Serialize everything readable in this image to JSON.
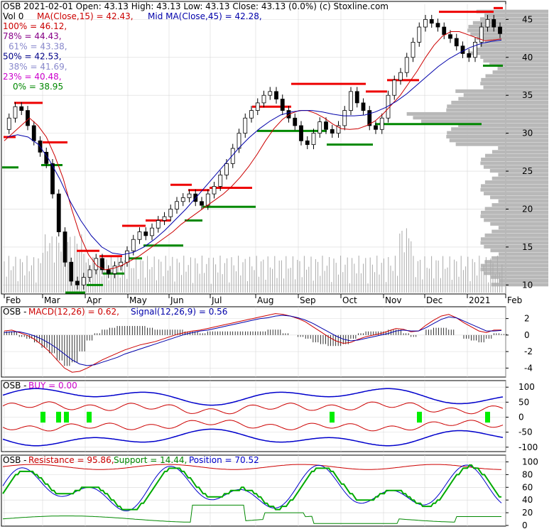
{
  "chart_data": [
    {
      "type": "candlestick",
      "title": "OSB  2021-02-01 Open: 43.13  High: 43.13  Low: 43.13  Close: 43.13 (0.0%)  (c) Stoxline.com",
      "volume_label": "Vol 0",
      "ma15_label": "MA(Close,15) = 42.43,",
      "ma45_label": "Mid MA(Close,45) = 42.28,",
      "fib_levels": [
        {
          "label": "100% = 46.12,",
          "value": 46.12,
          "color": "#cc0000"
        },
        {
          "label": "78% = 44.43,",
          "value": 44.43,
          "color": "#880088"
        },
        {
          "label": "61% = 43.38,",
          "value": 43.38,
          "color": "#8888cc"
        },
        {
          "label": "50% = 42.53,",
          "value": 42.53,
          "color": "#000088"
        },
        {
          "label": "38% = 41.69,",
          "value": 41.69,
          "color": "#8888cc"
        },
        {
          "label": "23% = 40.48,",
          "value": 40.48,
          "color": "#cc00cc"
        },
        {
          "label": "0% = 38.95",
          "value": 38.95,
          "color": "#008800"
        }
      ],
      "y_ticks": [
        "45",
        "40",
        "35",
        "30",
        "25",
        "20",
        "15",
        "10"
      ],
      "ylim": [
        9,
        47
      ],
      "x_ticks": [
        "Feb",
        "Mar",
        "Apr",
        "May",
        "Jun",
        "Jul",
        "Aug",
        "Sep",
        "Oct",
        "Nov",
        "Dec",
        "2021",
        "Feb"
      ],
      "close_series": [
        30.5,
        32,
        33.5,
        33,
        31,
        29,
        27.5,
        26,
        22,
        17,
        13,
        10.5,
        10,
        11,
        12,
        13.5,
        12,
        11.5,
        12.5,
        13,
        14.5,
        16,
        17,
        16.5,
        17.5,
        18.5,
        19,
        20,
        21,
        21.5,
        22,
        21,
        20.5,
        22,
        23,
        24.5,
        26,
        28,
        30,
        32,
        33,
        34,
        35,
        35.5,
        34.5,
        33,
        32,
        31,
        29,
        28.5,
        30,
        31.5,
        30.5,
        30,
        31,
        33,
        35.5,
        34,
        33,
        31,
        30.5,
        32,
        35,
        37,
        38,
        40,
        42,
        44,
        45,
        44.5,
        44,
        43,
        42.5,
        41.5,
        40.5,
        40,
        42,
        44,
        45,
        44,
        43.13
      ],
      "ma15_series": [
        29,
        30,
        31,
        32,
        31,
        29.5,
        27,
        24,
        20,
        16.5,
        14,
        12.5,
        12,
        12.2,
        12.6,
        13.2,
        13.8,
        14.6,
        15.4,
        16.2,
        17,
        18,
        18.8,
        19.6,
        20.4,
        21.2,
        22,
        23,
        24.2,
        25.6,
        27.2,
        29,
        30.6,
        31.8,
        32.6,
        33,
        33,
        32.6,
        32,
        31.2,
        30.6,
        30.5,
        30.6,
        31,
        31.6,
        32.6,
        33.8,
        35,
        36.6,
        38.2,
        40,
        41.6,
        42.8,
        43.4,
        43.4,
        43,
        42.6,
        42.2,
        42.3,
        42.43
      ],
      "ma45_series": [
        29.5,
        29.8,
        29.5,
        28.5,
        26.5,
        24,
        21,
        18.5,
        16.5,
        15,
        14.2,
        14,
        14.3,
        15,
        16,
        17.2,
        18.6,
        20,
        21.6,
        23.2,
        24.8,
        26.4,
        28,
        29.4,
        30.6,
        31.6,
        32.4,
        32.8,
        33,
        33,
        32.8,
        32.5,
        32.3,
        32.3,
        32.4,
        32.8,
        33.4,
        34.2,
        35.2,
        36.4,
        37.6,
        38.8,
        39.8,
        40.6,
        41.3,
        41.8,
        42.1,
        42.28
      ],
      "support_segments": [
        [
          3,
          26,
          25.5
        ],
        [
          58,
          88,
          25.8
        ],
        [
          92,
          120,
          9
        ],
        [
          122,
          145,
          10
        ],
        [
          145,
          175,
          11.5
        ],
        [
          176,
          200,
          13.5
        ],
        [
          202,
          258,
          15.2
        ],
        [
          260,
          285,
          18.5
        ],
        [
          285,
          360,
          20.3
        ],
        [
          362,
          460,
          30.3
        ],
        [
          460,
          525,
          28.5
        ],
        [
          528,
          678,
          31.2
        ],
        [
          680,
          708,
          38.9
        ]
      ],
      "resistance_segments": [
        [
          5,
          22,
          29.5
        ],
        [
          20,
          60,
          34
        ],
        [
          60,
          95,
          28.8
        ],
        [
          108,
          140,
          14.5
        ],
        [
          140,
          172,
          13.8
        ],
        [
          172,
          205,
          17.8
        ],
        [
          205,
          240,
          18.5
        ],
        [
          240,
          270,
          23.2
        ],
        [
          265,
          295,
          22.5
        ],
        [
          295,
          355,
          22.8
        ],
        [
          355,
          410,
          33.5
        ],
        [
          410,
          515,
          36.5
        ],
        [
          515,
          545,
          35.5
        ],
        [
          545,
          590,
          37
        ],
        [
          618,
          695,
          46
        ],
        [
          695,
          708,
          46.5
        ]
      ]
    },
    {
      "type": "line",
      "title": "OSB - MACD",
      "label_main": "MACD(12,26) = 0.62,",
      "label_signal": "Signal(12,26,9) = 0.56",
      "y_ticks": [
        "2",
        "0",
        "-2",
        "-4"
      ],
      "ylim": [
        -5,
        3
      ],
      "macd": [
        0.5,
        0.6,
        0.3,
        0,
        -0.5,
        -1.2,
        -2,
        -3,
        -4,
        -4.5,
        -4.4,
        -4,
        -3.5,
        -3,
        -2.6,
        -2.2,
        -1.8,
        -1.5,
        -1.2,
        -1,
        -0.8,
        -0.5,
        -0.2,
        0.1,
        0.3,
        0.5,
        0.6,
        0.8,
        1,
        1.2,
        1.4,
        1.6,
        1.8,
        2,
        2.2,
        2.4,
        2.6,
        2.5,
        2.3,
        2,
        1.6,
        1,
        0.4,
        -0.2,
        -0.7,
        -1,
        -0.9,
        -0.5,
        -0.2,
        0,
        0.2,
        0.5,
        0.8,
        0.7,
        0.4,
        0.5,
        1.2,
        1.8,
        2.3,
        2.5,
        2.1,
        1.5,
        1,
        0.5,
        0.3,
        0.6,
        0.62
      ],
      "signal": [
        0.3,
        0.4,
        0.4,
        0.2,
        -0.1,
        -0.5,
        -1,
        -1.6,
        -2.3,
        -3,
        -3.5,
        -3.7,
        -3.6,
        -3.3,
        -3,
        -2.7,
        -2.3,
        -2,
        -1.7,
        -1.4,
        -1.1,
        -0.8,
        -0.5,
        -0.2,
        0.1,
        0.3,
        0.5,
        0.6,
        0.8,
        1,
        1.2,
        1.4,
        1.6,
        1.8,
        2,
        2.1,
        2.3,
        2.4,
        2.3,
        2.1,
        1.8,
        1.4,
        0.9,
        0.4,
        -0.1,
        -0.5,
        -0.7,
        -0.6,
        -0.4,
        -0.2,
        0,
        0.2,
        0.5,
        0.6,
        0.5,
        0.5,
        0.9,
        1.4,
        1.9,
        2.2,
        2.1,
        1.7,
        1.3,
        0.9,
        0.5,
        0.5,
        0.56
      ]
    },
    {
      "type": "line",
      "title": "OSB - BUY = 0.00",
      "label_prefix": "OSB -",
      "label_buy": "BUY = 0.00",
      "y_ticks": [
        "100",
        "50",
        "0",
        "-50",
        "-100"
      ],
      "ylim": [
        -110,
        110
      ],
      "buy_markers": [
        60,
        82,
        93,
        125,
        467,
        590,
        686
      ]
    },
    {
      "type": "line",
      "title": "OSB - Resistance / Support / Position",
      "label_prefix": "OSB -",
      "label_resistance": "Resistance = 95.86,",
      "label_support": "Support = 14.44,",
      "label_position": "Position = 70.52",
      "y_ticks": [
        "100",
        "80",
        "60",
        "40",
        "20",
        "0"
      ],
      "ylim": [
        0,
        105
      ]
    }
  ]
}
